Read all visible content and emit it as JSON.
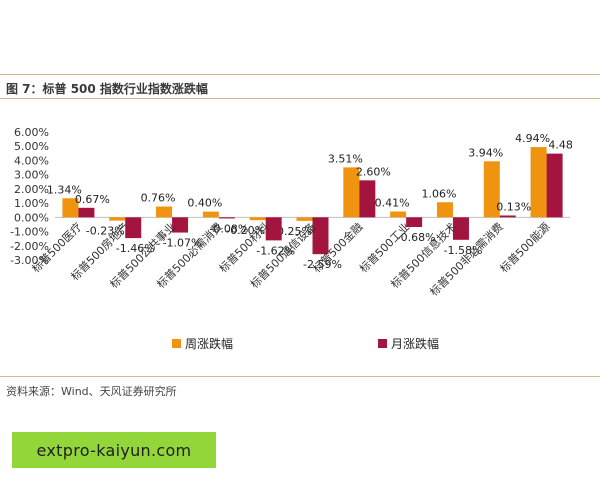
{
  "figure": {
    "title": "图 7：标普 500 指数行业指数涨跌幅",
    "source": "资料来源：Wind、天风证券研究所"
  },
  "banner": {
    "text": "extpro-kaiyun.com",
    "background": "#93d63a"
  },
  "colors": {
    "weekly": "#f0930f",
    "monthly": "#a3143f",
    "rule": "#d6b98a"
  },
  "chart_data": {
    "type": "bar",
    "title": "图 7：标普 500 指数行业指数涨跌幅",
    "xlabel": "",
    "ylabel": "",
    "categories": [
      "标普500医疗",
      "标普500房地产",
      "标普500公共事业",
      "标普500必需消费",
      "标普500材料",
      "标普500通信设备",
      "标普500金融",
      "标普500工业",
      "标普500信息技术",
      "标普500非必需消费",
      "标普500能源"
    ],
    "series": [
      {
        "name": "周涨跌幅",
        "values": [
          1.34,
          -0.23,
          0.76,
          0.4,
          -0.2,
          -0.25,
          3.51,
          0.41,
          1.06,
          3.94,
          4.94
        ],
        "labels": [
          "1.34%",
          "-0.23%",
          "0.76%",
          "0.40%",
          "-0.20%",
          "-0.25%",
          "3.51%",
          "0.41%",
          "1.06%",
          "3.94%",
          "4.94%"
        ]
      },
      {
        "name": "月涨跌幅",
        "values": [
          0.67,
          -1.46,
          -1.07,
          -0.08,
          -1.62,
          -2.59,
          2.6,
          -0.68,
          -1.58,
          0.13,
          4.48
        ],
        "labels": [
          "0.67%",
          "-1.46%",
          "-1.07%",
          "-0.08%",
          "-1.62%",
          "-2.59%",
          "2.60%",
          "-0.68%",
          "-1.58%",
          "0.13%",
          "4.48"
        ]
      }
    ],
    "yticks": [
      6,
      5,
      4,
      3,
      2,
      1,
      0,
      -1,
      -2,
      -3
    ],
    "ytick_labels": [
      "6.00%",
      "5.00%",
      "4.00%",
      "3.00%",
      "2.00%",
      "1.00%",
      "0.00%",
      "-1.00%",
      "-2.00%",
      "-3.00%"
    ],
    "ylim": [
      -3,
      6
    ],
    "legend": [
      "周涨跌幅",
      "月涨跌幅"
    ],
    "legend_position": "bottom",
    "grid": false
  }
}
